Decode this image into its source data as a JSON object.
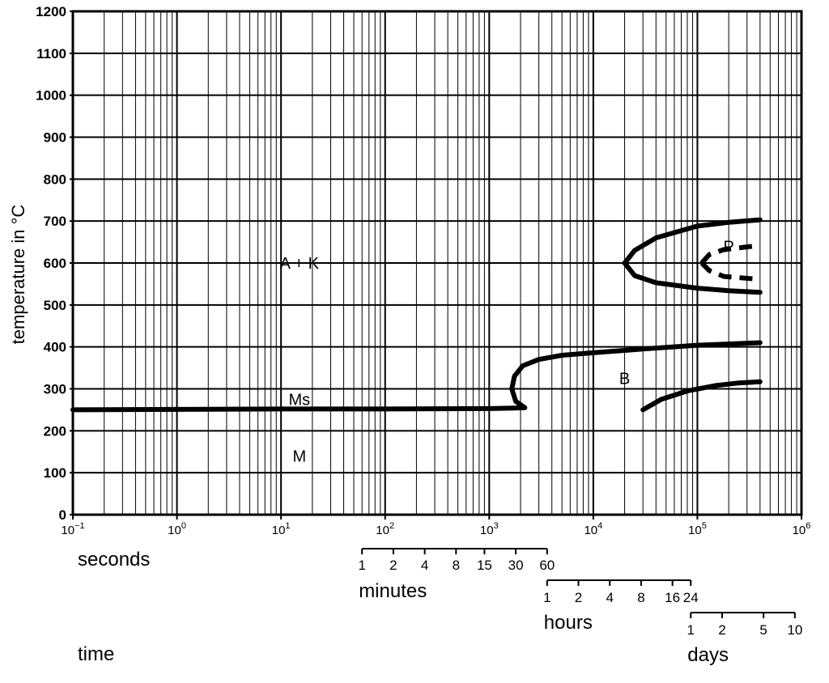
{
  "chart_data": {
    "type": "line",
    "title": "",
    "ylabel": "temperature in °C",
    "xlabel": "time",
    "x_scale": "log",
    "xlim": [
      0.1,
      1000000
    ],
    "ylim": [
      0,
      1200
    ],
    "y_ticks": [
      0,
      100,
      200,
      300,
      400,
      500,
      600,
      700,
      800,
      900,
      1000,
      1100,
      1200
    ],
    "x_ticks": [
      {
        "value": 0.1,
        "base": "10",
        "exp": "−1"
      },
      {
        "value": 1,
        "base": "10",
        "exp": "0"
      },
      {
        "value": 10,
        "base": "10",
        "exp": "1"
      },
      {
        "value": 100,
        "base": "10",
        "exp": "2"
      },
      {
        "value": 1000,
        "base": "10",
        "exp": "3"
      },
      {
        "value": 10000,
        "base": "10",
        "exp": "4"
      },
      {
        "value": 100000,
        "base": "10",
        "exp": "5"
      },
      {
        "value": 1000000,
        "base": "10",
        "exp": "6"
      }
    ],
    "grid": true,
    "series": [
      {
        "name": "",
        "style": "solid",
        "points": [
          [
            0.1,
            250
          ],
          [
            1,
            251
          ],
          [
            10,
            252
          ],
          [
            100,
            252
          ],
          [
            1000,
            253
          ],
          [
            1750,
            254
          ],
          [
            2200,
            255
          ],
          [
            1800,
            270
          ],
          [
            1650,
            300
          ],
          [
            1750,
            330
          ],
          [
            2100,
            355
          ],
          [
            3000,
            370
          ],
          [
            5000,
            380
          ],
          [
            10000,
            386
          ],
          [
            30000,
            395
          ],
          [
            100000,
            404
          ],
          [
            400000,
            410
          ]
        ]
      },
      {
        "name": "",
        "style": "solid",
        "points": [
          [
            20000,
            600
          ],
          [
            25000,
            630
          ],
          [
            40000,
            660
          ],
          [
            100000,
            688
          ],
          [
            200000,
            697
          ],
          [
            400000,
            703
          ]
        ]
      },
      {
        "name": "",
        "style": "solid",
        "points": [
          [
            20000,
            600
          ],
          [
            25000,
            570
          ],
          [
            40000,
            553
          ],
          [
            100000,
            540
          ],
          [
            200000,
            534
          ],
          [
            400000,
            530
          ]
        ]
      },
      {
        "name": "",
        "style": "solid",
        "points": [
          [
            30000,
            250
          ],
          [
            45000,
            275
          ],
          [
            80000,
            295
          ],
          [
            150000,
            308
          ],
          [
            250000,
            314
          ],
          [
            400000,
            317
          ]
        ]
      },
      {
        "name": "",
        "style": "dashed",
        "points": [
          [
            110000,
            600
          ],
          [
            130000,
            620
          ],
          [
            180000,
            632
          ],
          [
            400000,
            642
          ]
        ]
      },
      {
        "name": "",
        "style": "dashed",
        "points": [
          [
            110000,
            600
          ],
          [
            130000,
            582
          ],
          [
            180000,
            568
          ],
          [
            400000,
            561
          ]
        ]
      }
    ],
    "annotations": [
      {
        "text": "A + K",
        "x": 15,
        "y": 600
      },
      {
        "text": "P",
        "x": 200000,
        "y": 640
      },
      {
        "text": "Ms",
        "x": 15,
        "y": 275
      },
      {
        "text": "B",
        "x": 20000,
        "y": 325
      },
      {
        "text": "M",
        "x": 15,
        "y": 140
      }
    ],
    "time_scales": [
      {
        "unit": "seconds",
        "ticks": []
      },
      {
        "unit": "minutes",
        "ticks": [
          {
            "label": "1",
            "seconds": 60
          },
          {
            "label": "2",
            "seconds": 120
          },
          {
            "label": "4",
            "seconds": 240
          },
          {
            "label": "8",
            "seconds": 480
          },
          {
            "label": "15",
            "seconds": 900
          },
          {
            "label": "30",
            "seconds": 1800
          },
          {
            "label": "60",
            "seconds": 3600
          }
        ]
      },
      {
        "unit": "hours",
        "ticks": [
          {
            "label": "1",
            "seconds": 3600
          },
          {
            "label": "2",
            "seconds": 7200
          },
          {
            "label": "4",
            "seconds": 14400
          },
          {
            "label": "8",
            "seconds": 28800
          },
          {
            "label": "16",
            "seconds": 57600
          },
          {
            "label": "24",
            "seconds": 86400
          }
        ]
      },
      {
        "unit": "days",
        "ticks": [
          {
            "label": "1",
            "seconds": 86400
          },
          {
            "label": "2",
            "seconds": 172800
          },
          {
            "label": "5",
            "seconds": 432000
          },
          {
            "label": "10",
            "seconds": 864000
          }
        ]
      }
    ]
  }
}
